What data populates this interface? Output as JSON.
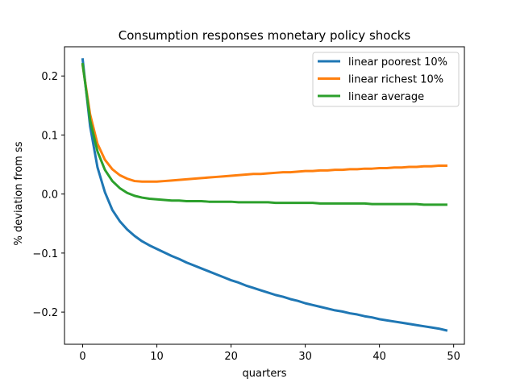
{
  "chart_data": {
    "type": "line",
    "title": "Consumption responses monetary policy shocks",
    "xlabel": "quarters",
    "ylabel": "% deviation from ss",
    "xlim": [
      -2.45,
      51.45
    ],
    "ylim": [
      -0.2545,
      0.2495
    ],
    "xticks": [
      0,
      10,
      20,
      30,
      40,
      50
    ],
    "xtick_labels": [
      "0",
      "10",
      "20",
      "30",
      "40",
      "50"
    ],
    "yticks": [
      -0.2,
      -0.1,
      0.0,
      0.1,
      0.2
    ],
    "ytick_labels": [
      "−0.2",
      "−0.1",
      "0.0",
      "0.1",
      "0.2"
    ],
    "grid": false,
    "legend_position": "top-right",
    "x": [
      0,
      1,
      2,
      3,
      4,
      5,
      6,
      7,
      8,
      9,
      10,
      11,
      12,
      13,
      14,
      15,
      16,
      17,
      18,
      19,
      20,
      21,
      22,
      23,
      24,
      25,
      26,
      27,
      28,
      29,
      30,
      31,
      32,
      33,
      34,
      35,
      36,
      37,
      38,
      39,
      40,
      41,
      42,
      43,
      44,
      45,
      46,
      47,
      48,
      49
    ],
    "series": [
      {
        "name": "linear poorest 10%",
        "color": "#1f77b4",
        "values": [
          0.228,
          0.115,
          0.045,
          0.003,
          -0.027,
          -0.046,
          -0.06,
          -0.071,
          -0.08,
          -0.087,
          -0.093,
          -0.099,
          -0.105,
          -0.11,
          -0.116,
          -0.121,
          -0.126,
          -0.131,
          -0.136,
          -0.141,
          -0.146,
          -0.15,
          -0.155,
          -0.159,
          -0.163,
          -0.167,
          -0.171,
          -0.174,
          -0.178,
          -0.181,
          -0.185,
          -0.188,
          -0.191,
          -0.194,
          -0.197,
          -0.199,
          -0.202,
          -0.204,
          -0.207,
          -0.209,
          -0.212,
          -0.214,
          -0.216,
          -0.218,
          -0.22,
          -0.222,
          -0.224,
          -0.226,
          -0.228,
          -0.231
        ]
      },
      {
        "name": "linear richest 10%",
        "color": "#ff7f0e",
        "values": [
          0.218,
          0.135,
          0.085,
          0.058,
          0.042,
          0.032,
          0.026,
          0.022,
          0.021,
          0.021,
          0.021,
          0.022,
          0.023,
          0.024,
          0.025,
          0.026,
          0.027,
          0.028,
          0.029,
          0.03,
          0.031,
          0.032,
          0.033,
          0.034,
          0.034,
          0.035,
          0.036,
          0.037,
          0.037,
          0.038,
          0.039,
          0.039,
          0.04,
          0.04,
          0.041,
          0.041,
          0.042,
          0.042,
          0.043,
          0.043,
          0.044,
          0.044,
          0.045,
          0.045,
          0.046,
          0.046,
          0.047,
          0.047,
          0.048,
          0.048
        ]
      },
      {
        "name": "linear average",
        "color": "#2ca02c",
        "values": [
          0.22,
          0.125,
          0.072,
          0.041,
          0.022,
          0.01,
          0.002,
          -0.003,
          -0.006,
          -0.008,
          -0.009,
          -0.01,
          -0.011,
          -0.011,
          -0.012,
          -0.012,
          -0.012,
          -0.013,
          -0.013,
          -0.013,
          -0.013,
          -0.014,
          -0.014,
          -0.014,
          -0.014,
          -0.014,
          -0.015,
          -0.015,
          -0.015,
          -0.015,
          -0.015,
          -0.015,
          -0.016,
          -0.016,
          -0.016,
          -0.016,
          -0.016,
          -0.016,
          -0.016,
          -0.017,
          -0.017,
          -0.017,
          -0.017,
          -0.017,
          -0.017,
          -0.017,
          -0.018,
          -0.018,
          -0.018,
          -0.018
        ]
      }
    ]
  }
}
